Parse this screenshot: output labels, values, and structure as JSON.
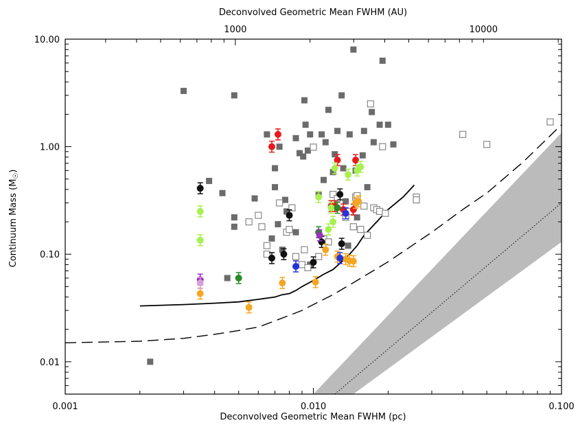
{
  "chart_data": {
    "type": "scatter",
    "title": "",
    "xlabel": "Deconvolved Geometric Mean FWHM (pc)",
    "ylabel_main": "Continuum Mass (M",
    "ylabel_sun": "☉",
    "ylabel_close": ")",
    "x2label": "Deconvolved Geometric Mean FWHM (AU)",
    "xscale": "log",
    "yscale": "log",
    "xlim": [
      0.001,
      0.1
    ],
    "ylim": [
      0.005,
      10
    ],
    "grid": false,
    "x_ticks": [
      {
        "value": 0.001,
        "label": "0.001"
      },
      {
        "value": 0.01,
        "label": "0.010"
      },
      {
        "value": 0.1,
        "label": "0.100"
      }
    ],
    "y_ticks": [
      {
        "value": 0.01,
        "label": "0.01"
      },
      {
        "value": 0.1,
        "label": "0.10"
      },
      {
        "value": 1,
        "label": "1.00"
      },
      {
        "value": 10,
        "label": "10.00"
      }
    ],
    "top_ticks": [
      {
        "au": 1000,
        "label": "1000"
      },
      {
        "au": 10000,
        "label": "10000"
      }
    ],
    "colors": {
      "gray_square": "#6b6b6b",
      "open_square": "#888888",
      "band": "#bbbbbb",
      "red": "#e8191c",
      "black": "#111111",
      "lightgreen": "#a8f050",
      "green": "#2a8a2a",
      "orange": "#f5a623",
      "blue": "#2233dd",
      "purple": "#9a2fc0",
      "pink": "#d8a0d8"
    },
    "filled_squares": [
      [
        0.0022,
        0.01
      ],
      [
        0.003,
        3.3
      ],
      [
        0.0038,
        0.48
      ],
      [
        0.0043,
        0.37
      ],
      [
        0.0045,
        0.06
      ],
      [
        0.0048,
        0.22
      ],
      [
        0.0048,
        0.18
      ],
      [
        0.0048,
        3.0
      ],
      [
        0.0058,
        0.33
      ],
      [
        0.0065,
        1.3
      ],
      [
        0.0068,
        0.14
      ],
      [
        0.007,
        0.42
      ],
      [
        0.007,
        0.63
      ],
      [
        0.0072,
        0.19
      ],
      [
        0.0073,
        1.0
      ],
      [
        0.0075,
        0.11
      ],
      [
        0.0077,
        0.32
      ],
      [
        0.0078,
        0.25
      ],
      [
        0.0085,
        1.2
      ],
      [
        0.0088,
        0.87
      ],
      [
        0.0091,
        0.81
      ],
      [
        0.0092,
        2.7
      ],
      [
        0.0093,
        1.6
      ],
      [
        0.0095,
        0.92
      ],
      [
        0.0097,
        1.3
      ],
      [
        0.0105,
        0.36
      ],
      [
        0.0108,
        1.3
      ],
      [
        0.011,
        0.49
      ],
      [
        0.0112,
        1.1
      ],
      [
        0.0115,
        2.2
      ],
      [
        0.012,
        0.58
      ],
      [
        0.0122,
        0.85
      ],
      [
        0.0125,
        1.4
      ],
      [
        0.013,
        3.0
      ],
      [
        0.0132,
        0.63
      ],
      [
        0.0135,
        0.31
      ],
      [
        0.0138,
        0.12
      ],
      [
        0.014,
        1.3
      ],
      [
        0.0145,
        8.0
      ],
      [
        0.0148,
        0.6
      ],
      [
        0.015,
        0.22
      ],
      [
        0.0158,
        0.83
      ],
      [
        0.016,
        1.4
      ],
      [
        0.0165,
        0.42
      ],
      [
        0.0172,
        2.1
      ],
      [
        0.0175,
        1.1
      ],
      [
        0.0185,
        1.6
      ],
      [
        0.019,
        6.3
      ],
      [
        0.02,
        1.6
      ],
      [
        0.021,
        1.05
      ],
      [
        0.0085,
        0.16
      ],
      [
        0.0097,
        0.08
      ]
    ],
    "open_squares": [
      [
        0.0055,
        0.2
      ],
      [
        0.006,
        0.23
      ],
      [
        0.0062,
        0.18
      ],
      [
        0.0065,
        0.1
      ],
      [
        0.0065,
        0.12
      ],
      [
        0.0073,
        0.3
      ],
      [
        0.0078,
        0.16
      ],
      [
        0.008,
        0.17
      ],
      [
        0.0082,
        0.27
      ],
      [
        0.0085,
        0.095
      ],
      [
        0.009,
        0.08
      ],
      [
        0.0092,
        0.11
      ],
      [
        0.0095,
        0.075
      ],
      [
        0.01,
        0.99
      ],
      [
        0.0105,
        0.095
      ],
      [
        0.011,
        0.14
      ],
      [
        0.0115,
        0.13
      ],
      [
        0.012,
        0.36
      ],
      [
        0.0125,
        0.33
      ],
      [
        0.0135,
        0.22
      ],
      [
        0.014,
        0.25
      ],
      [
        0.0145,
        0.18
      ],
      [
        0.0148,
        0.34
      ],
      [
        0.015,
        0.35
      ],
      [
        0.0155,
        0.17
      ],
      [
        0.016,
        0.28
      ],
      [
        0.0165,
        0.15
      ],
      [
        0.017,
        2.5
      ],
      [
        0.0175,
        0.27
      ],
      [
        0.018,
        0.26
      ],
      [
        0.0185,
        0.25
      ],
      [
        0.019,
        1.0
      ],
      [
        0.0195,
        0.24
      ],
      [
        0.026,
        0.34
      ],
      [
        0.026,
        0.32
      ],
      [
        0.04,
        1.3
      ],
      [
        0.05,
        1.05
      ],
      [
        0.09,
        1.7
      ]
    ],
    "filled_circles": [
      {
        "c": "red",
        "p": [
          [
            0.0068,
            1.0
          ],
          [
            0.0072,
            1.3
          ],
          [
            0.0118,
            0.28
          ],
          [
            0.0122,
            0.28
          ],
          [
            0.0125,
            0.75
          ],
          [
            0.0132,
            0.26
          ],
          [
            0.0145,
            0.26
          ],
          [
            0.0148,
            0.75
          ]
        ]
      },
      {
        "c": "black",
        "p": [
          [
            0.0035,
            0.41
          ],
          [
            0.0068,
            0.092
          ],
          [
            0.0076,
            0.1
          ],
          [
            0.008,
            0.23
          ],
          [
            0.01,
            0.084
          ],
          [
            0.0108,
            0.13
          ],
          [
            0.0128,
            0.36
          ],
          [
            0.013,
            0.125
          ]
        ]
      },
      {
        "c": "lightgreen",
        "p": [
          [
            0.0035,
            0.25
          ],
          [
            0.0035,
            0.135
          ],
          [
            0.0105,
            0.34
          ],
          [
            0.0115,
            0.17
          ],
          [
            0.0118,
            0.27
          ],
          [
            0.012,
            0.2
          ],
          [
            0.0122,
            0.63
          ],
          [
            0.0138,
            0.55
          ],
          [
            0.015,
            0.6
          ],
          [
            0.0155,
            0.65
          ]
        ]
      },
      {
        "c": "green",
        "p": [
          [
            0.005,
            0.06
          ],
          [
            0.0105,
            0.16
          ],
          [
            0.0125,
            0.27
          ]
        ]
      },
      {
        "c": "orange",
        "p": [
          [
            0.0035,
            0.043
          ],
          [
            0.0055,
            0.032
          ],
          [
            0.0075,
            0.054
          ],
          [
            0.0102,
            0.055
          ],
          [
            0.0112,
            0.11
          ],
          [
            0.0125,
            0.095
          ],
          [
            0.0135,
            0.09
          ],
          [
            0.014,
            0.087
          ],
          [
            0.0145,
            0.086
          ],
          [
            0.0148,
            0.3
          ],
          [
            0.0152,
            0.31
          ]
        ]
      },
      {
        "c": "blue",
        "p": [
          [
            0.0085,
            0.077
          ],
          [
            0.0128,
            0.092
          ],
          [
            0.0135,
            0.24
          ]
        ]
      },
      {
        "c": "purple",
        "p": [
          [
            0.0035,
            0.058
          ],
          [
            0.0106,
            0.15
          ]
        ]
      },
      {
        "c": "pink",
        "p": [
          [
            0.0035,
            0.054
          ]
        ]
      }
    ],
    "sensitivity_curve": [
      [
        0.002,
        0.033
      ],
      [
        0.003,
        0.034
      ],
      [
        0.004,
        0.035
      ],
      [
        0.005,
        0.036
      ],
      [
        0.006,
        0.038
      ],
      [
        0.007,
        0.04
      ],
      [
        0.0075,
        0.042
      ],
      [
        0.008,
        0.043
      ],
      [
        0.0085,
        0.046
      ],
      [
        0.009,
        0.05
      ],
      [
        0.01,
        0.057
      ],
      [
        0.011,
        0.065
      ],
      [
        0.012,
        0.072
      ],
      [
        0.013,
        0.085
      ],
      [
        0.014,
        0.1
      ],
      [
        0.015,
        0.12
      ],
      [
        0.016,
        0.15
      ],
      [
        0.018,
        0.2
      ],
      [
        0.02,
        0.26
      ],
      [
        0.023,
        0.34
      ],
      [
        0.0255,
        0.44
      ]
    ],
    "dashed_curve": [
      [
        0.001,
        0.015
      ],
      [
        0.002,
        0.0155
      ],
      [
        0.003,
        0.0165
      ],
      [
        0.004,
        0.018
      ],
      [
        0.005,
        0.0195
      ],
      [
        0.006,
        0.021
      ],
      [
        0.007,
        0.024
      ],
      [
        0.008,
        0.027
      ],
      [
        0.009,
        0.03
      ],
      [
        0.01,
        0.034
      ],
      [
        0.012,
        0.042
      ],
      [
        0.015,
        0.057
      ],
      [
        0.02,
        0.085
      ],
      [
        0.03,
        0.16
      ],
      [
        0.04,
        0.26
      ],
      [
        0.05,
        0.37
      ],
      [
        0.07,
        0.72
      ],
      [
        0.1,
        1.6
      ]
    ],
    "band_lower": [
      [
        0.0145,
        0.005
      ],
      [
        0.1,
        0.13
      ]
    ],
    "band_upper": [
      [
        0.01,
        0.005
      ],
      [
        0.1,
        1.35
      ]
    ],
    "dotted_line": [
      [
        0.0122,
        0.005
      ],
      [
        0.1,
        0.3
      ]
    ]
  }
}
